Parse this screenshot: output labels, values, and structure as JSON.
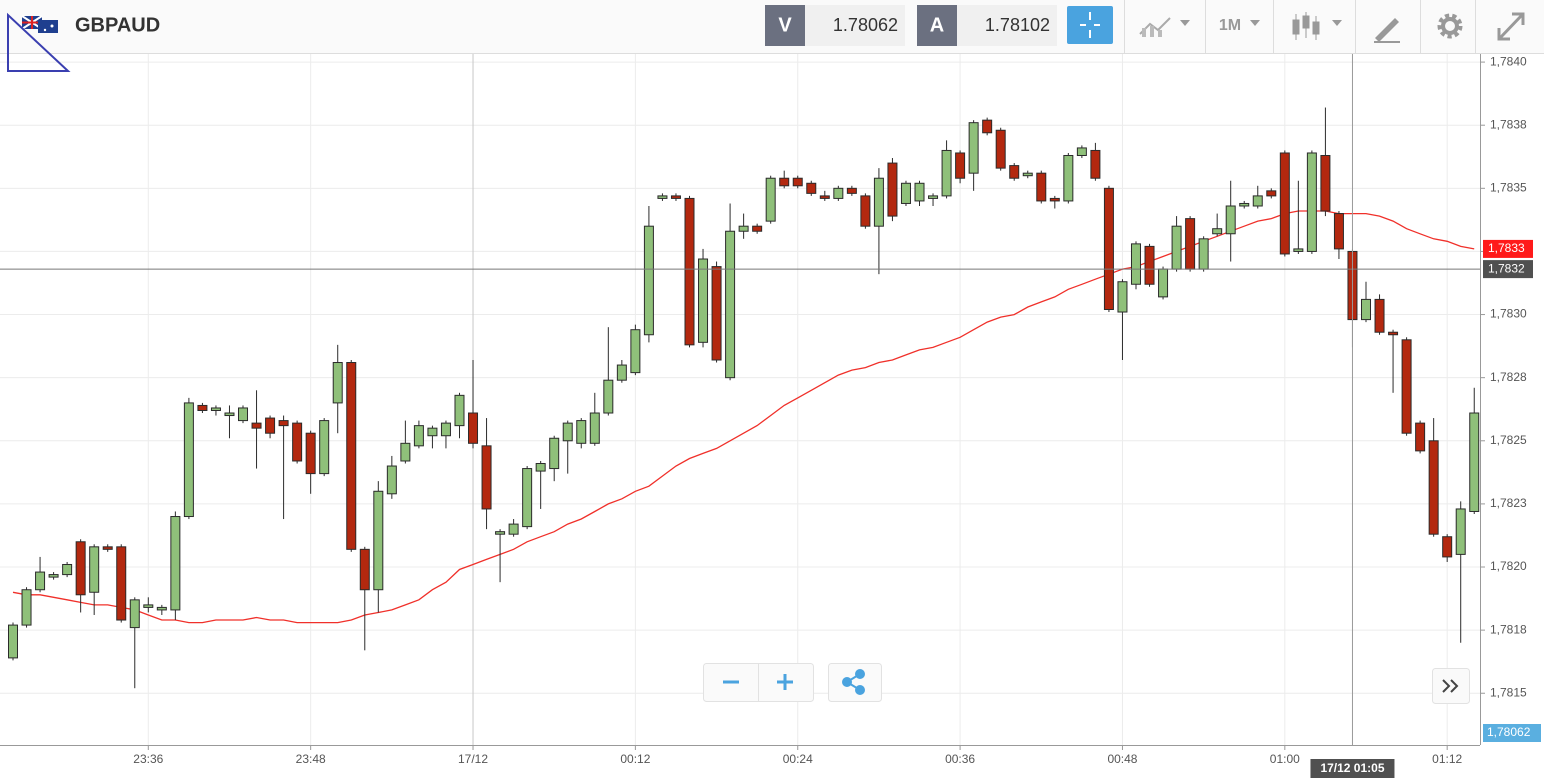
{
  "header": {
    "symbol": "GBPAUD",
    "bid_label": "V",
    "bid": "1.78062",
    "ask_label": "A",
    "ask": "1.78102",
    "timeframe": "1M"
  },
  "chart_data": {
    "type": "candlestick",
    "categories": [
      null,
      null,
      null,
      null,
      null,
      null,
      null,
      null,
      null,
      null,
      "23:36",
      null,
      null,
      null,
      null,
      null,
      null,
      null,
      null,
      null,
      null,
      null,
      "23:48",
      null,
      null,
      null,
      null,
      null,
      null,
      null,
      null,
      null,
      null,
      null,
      "17/12",
      null,
      null,
      null,
      null,
      null,
      null,
      null,
      null,
      null,
      null,
      null,
      "00:12",
      null,
      null,
      null,
      null,
      null,
      null,
      null,
      null,
      null,
      null,
      null,
      "00:24",
      null,
      null,
      null,
      null,
      null,
      null,
      null,
      null,
      null,
      null,
      null,
      "00:36",
      null,
      null,
      null,
      null,
      null,
      null,
      null,
      null,
      null,
      null,
      null,
      "00:48",
      null,
      null,
      null,
      null,
      null,
      null,
      null,
      null,
      null,
      null,
      null,
      "01:00",
      null,
      null,
      null,
      null,
      null,
      null,
      null,
      null,
      null,
      null,
      null,
      "01:12",
      null,
      null
    ],
    "open": [
      1.78164,
      1.78177,
      1.78191,
      1.78196,
      1.78197,
      1.7821,
      1.7819,
      1.78208,
      1.78208,
      1.78176,
      1.78184,
      1.78183,
      1.78183,
      1.7822,
      1.78264,
      1.78262,
      1.7826,
      1.78258,
      1.78257,
      1.78259,
      1.78258,
      1.78257,
      1.78253,
      1.78237,
      1.78265,
      1.78281,
      1.78207,
      1.78191,
      1.78229,
      1.78242,
      1.78248,
      1.78252,
      1.78252,
      1.78256,
      1.78261,
      1.78248,
      1.78213,
      1.78213,
      1.78216,
      1.78238,
      1.78239,
      1.7825,
      1.78249,
      1.78249,
      1.78261,
      1.78274,
      1.78277,
      1.78292,
      1.78346,
      1.78347,
      1.78346,
      1.78289,
      1.78319,
      1.78275,
      1.78333,
      1.78335,
      1.78337,
      1.78354,
      1.78354,
      1.78352,
      1.78347,
      1.78346,
      1.7835,
      1.78347,
      1.78335,
      1.7836,
      1.78344,
      1.78345,
      1.78346,
      1.78347,
      1.78364,
      1.78356,
      1.78377,
      1.78373,
      1.78359,
      1.78355,
      1.78356,
      1.78346,
      1.78345,
      1.78363,
      1.78365,
      1.7835,
      1.78301,
      1.78312,
      1.78327,
      1.78307,
      1.78318,
      1.78338,
      1.78318,
      1.78332,
      1.78332,
      1.78343,
      1.78343,
      1.78349,
      1.78364,
      1.78325,
      1.78325,
      1.78363,
      1.7834,
      1.78325,
      1.78298,
      1.78306,
      1.78293,
      1.7829,
      1.78257,
      1.7825,
      1.78212,
      1.78205,
      1.78222
    ],
    "high": [
      1.78178,
      1.78192,
      1.78204,
      1.78198,
      1.78202,
      1.78211,
      1.78209,
      1.78209,
      1.78209,
      1.78188,
      1.78188,
      1.78185,
      1.78222,
      1.78267,
      1.78265,
      1.78264,
      1.78264,
      1.78264,
      1.7827,
      1.7826,
      1.7826,
      1.78258,
      1.78254,
      1.78259,
      1.78288,
      1.78282,
      1.78208,
      1.78234,
      1.78244,
      1.78258,
      1.78258,
      1.78256,
      1.78258,
      1.78269,
      1.78282,
      1.78259,
      1.78215,
      1.78219,
      1.7824,
      1.78242,
      1.78252,
      1.78258,
      1.78259,
      1.78269,
      1.78295,
      1.78282,
      1.78296,
      1.78343,
      1.78348,
      1.78348,
      1.78347,
      1.78326,
      1.78321,
      1.78344,
      1.7834,
      1.78336,
      1.78355,
      1.78357,
      1.78355,
      1.78353,
      1.78349,
      1.78351,
      1.78351,
      1.78348,
      1.78358,
      1.78362,
      1.78353,
      1.78353,
      1.78348,
      1.78369,
      1.78365,
      1.78377,
      1.78378,
      1.78374,
      1.7836,
      1.78357,
      1.78357,
      1.78347,
      1.78364,
      1.78367,
      1.78368,
      1.78351,
      1.78314,
      1.78329,
      1.78328,
      1.78319,
      1.78339,
      1.78339,
      1.78331,
      1.7834,
      1.78353,
      1.78345,
      1.78351,
      1.7835,
      1.78365,
      1.78353,
      1.78365,
      1.78382,
      1.78341,
      1.78326,
      1.78313,
      1.78308,
      1.78294,
      1.78291,
      1.78258,
      1.78259,
      1.78213,
      1.78226,
      1.78271
    ],
    "low": [
      1.78163,
      1.78176,
      1.7819,
      1.78195,
      1.78196,
      1.78182,
      1.78181,
      1.78206,
      1.78178,
      1.78152,
      1.78182,
      1.78181,
      1.78179,
      1.78219,
      1.78261,
      1.7826,
      1.78251,
      1.78257,
      1.78239,
      1.78251,
      1.78219,
      1.78241,
      1.78229,
      1.78236,
      1.78253,
      1.78206,
      1.78167,
      1.78182,
      1.78227,
      1.78241,
      1.78247,
      1.78247,
      1.78247,
      1.78251,
      1.78247,
      1.78215,
      1.78194,
      1.78212,
      1.78215,
      1.78223,
      1.78234,
      1.78237,
      1.78247,
      1.78248,
      1.7826,
      1.78273,
      1.78276,
      1.78289,
      1.78345,
      1.78345,
      1.78287,
      1.78287,
      1.78281,
      1.78274,
      1.7833,
      1.78332,
      1.78336,
      1.7835,
      1.7835,
      1.78347,
      1.78345,
      1.78345,
      1.78347,
      1.78334,
      1.78316,
      1.78337,
      1.78343,
      1.78343,
      1.78343,
      1.78346,
      1.78352,
      1.78349,
      1.78371,
      1.78357,
      1.78353,
      1.78354,
      1.78344,
      1.78342,
      1.78344,
      1.78362,
      1.78353,
      1.78301,
      1.78282,
      1.7831,
      1.78311,
      1.78306,
      1.78317,
      1.78317,
      1.78317,
      1.78331,
      1.78321,
      1.78342,
      1.78342,
      1.78346,
      1.78323,
      1.78324,
      1.78324,
      1.78339,
      1.78322,
      1.78287,
      1.78297,
      1.78292,
      1.78269,
      1.78252,
      1.78245,
      1.78212,
      1.78202,
      1.7817,
      1.78221
    ],
    "close": [
      1.78177,
      1.78191,
      1.78198,
      1.78197,
      1.78201,
      1.78189,
      1.78208,
      1.78207,
      1.78179,
      1.78187,
      1.78185,
      1.78184,
      1.7822,
      1.78265,
      1.78262,
      1.78263,
      1.78261,
      1.78263,
      1.78255,
      1.78253,
      1.78256,
      1.78242,
      1.78237,
      1.78258,
      1.78281,
      1.78207,
      1.78191,
      1.7823,
      1.7824,
      1.78249,
      1.78256,
      1.78255,
      1.78257,
      1.78268,
      1.78249,
      1.78223,
      1.78214,
      1.78217,
      1.78239,
      1.78241,
      1.78251,
      1.78257,
      1.78258,
      1.78261,
      1.78274,
      1.7828,
      1.78294,
      1.78335,
      1.78347,
      1.78346,
      1.78288,
      1.78322,
      1.78282,
      1.78333,
      1.78335,
      1.78333,
      1.78354,
      1.78351,
      1.78351,
      1.78348,
      1.78346,
      1.7835,
      1.78348,
      1.78335,
      1.78354,
      1.78339,
      1.78352,
      1.78352,
      1.78347,
      1.78365,
      1.78354,
      1.78376,
      1.78372,
      1.78358,
      1.78354,
      1.78356,
      1.78345,
      1.78345,
      1.78363,
      1.78366,
      1.78354,
      1.78302,
      1.78313,
      1.78328,
      1.78312,
      1.78318,
      1.78335,
      1.78318,
      1.7833,
      1.78334,
      1.78343,
      1.78344,
      1.78347,
      1.78347,
      1.78324,
      1.78326,
      1.78364,
      1.78341,
      1.78326,
      1.78298,
      1.78306,
      1.78293,
      1.78292,
      1.78253,
      1.78246,
      1.78213,
      1.78204,
      1.78223,
      1.78261
    ],
    "up_color": "#8fc07a",
    "down_color": "#b3280f",
    "ma": {
      "color": "#f0302a",
      "label": "1,7833",
      "values": [
        1.7819,
        1.78189,
        1.78189,
        1.78188,
        1.78187,
        1.78186,
        1.78185,
        1.78185,
        1.78184,
        1.78183,
        1.78181,
        1.78179,
        1.78179,
        1.78178,
        1.78178,
        1.78179,
        1.78179,
        1.78179,
        1.7818,
        1.78179,
        1.78179,
        1.78178,
        1.78178,
        1.78178,
        1.78178,
        1.78179,
        1.78181,
        1.78182,
        1.78183,
        1.78185,
        1.78187,
        1.78191,
        1.78194,
        1.78199,
        1.78201,
        1.78203,
        1.78205,
        1.78207,
        1.7821,
        1.78212,
        1.78214,
        1.78217,
        1.78219,
        1.78222,
        1.78225,
        1.78227,
        1.7823,
        1.78232,
        1.78236,
        1.7824,
        1.78243,
        1.78245,
        1.78247,
        1.7825,
        1.78253,
        1.78256,
        1.7826,
        1.78264,
        1.78267,
        1.7827,
        1.78273,
        1.78276,
        1.78278,
        1.78279,
        1.78281,
        1.78282,
        1.78284,
        1.78286,
        1.78287,
        1.78289,
        1.78291,
        1.78294,
        1.78297,
        1.78299,
        1.783,
        1.78303,
        1.78305,
        1.78307,
        1.7831,
        1.78312,
        1.78314,
        1.78316,
        1.78318,
        1.78319,
        1.78321,
        1.78323,
        1.78325,
        1.78327,
        1.78329,
        1.78331,
        1.78333,
        1.78335,
        1.78337,
        1.78338,
        1.7834,
        1.78341,
        1.78341,
        1.78341,
        1.7834,
        1.7834,
        1.7834,
        1.78339,
        1.78337,
        1.78334,
        1.78332,
        1.7833,
        1.78329,
        1.78327,
        1.78326
      ]
    },
    "price_line": {
      "value": 1.78318,
      "label": "1,7832"
    },
    "bid_badge": "1,78062",
    "crosshair_label": "17/12 01:05",
    "ylim": [
      1.781295,
      1.784036
    ],
    "yticks": [
      {
        "value": 1.784,
        "label": "1,7840"
      },
      {
        "value": 1.78375,
        "label": "1,7838"
      },
      {
        "value": 1.7835,
        "label": "1,7835"
      },
      {
        "value": 1.78325,
        "label": "1,7833"
      },
      {
        "value": 1.783,
        "label": "1,7830"
      },
      {
        "value": 1.78275,
        "label": "1,7828"
      },
      {
        "value": 1.7825,
        "label": "1,7825"
      },
      {
        "value": 1.78225,
        "label": "1,7823"
      },
      {
        "value": 1.782,
        "label": "1,7820"
      },
      {
        "value": 1.78175,
        "label": "1,7818"
      },
      {
        "value": 1.7815,
        "label": "1,7815"
      }
    ],
    "grid": true
  }
}
